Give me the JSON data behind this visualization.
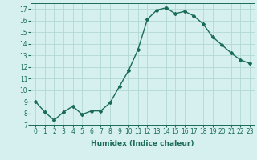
{
  "x": [
    0,
    1,
    2,
    3,
    4,
    5,
    6,
    7,
    8,
    9,
    10,
    11,
    12,
    13,
    14,
    15,
    16,
    17,
    18,
    19,
    20,
    21,
    22,
    23
  ],
  "y": [
    9.0,
    8.1,
    7.4,
    8.1,
    8.6,
    7.9,
    8.2,
    8.2,
    8.9,
    10.3,
    11.7,
    13.5,
    16.1,
    16.9,
    17.1,
    16.6,
    16.8,
    16.4,
    15.7,
    14.6,
    13.9,
    13.2,
    12.6,
    12.3
  ],
  "line_color": "#1a6b5a",
  "marker": "D",
  "marker_size": 2,
  "background_color": "#d6f0ef",
  "grid_color": "#b0d8d5",
  "xlabel": "Humidex (Indice chaleur)",
  "ylabel": "",
  "xlim": [
    -0.5,
    23.5
  ],
  "ylim": [
    7,
    17.5
  ],
  "yticks": [
    7,
    8,
    9,
    10,
    11,
    12,
    13,
    14,
    15,
    16,
    17
  ],
  "xticks": [
    0,
    1,
    2,
    3,
    4,
    5,
    6,
    7,
    8,
    9,
    10,
    11,
    12,
    13,
    14,
    15,
    16,
    17,
    18,
    19,
    20,
    21,
    22,
    23
  ],
  "tick_fontsize": 5.5,
  "label_fontsize": 6.5,
  "line_width": 1.0
}
